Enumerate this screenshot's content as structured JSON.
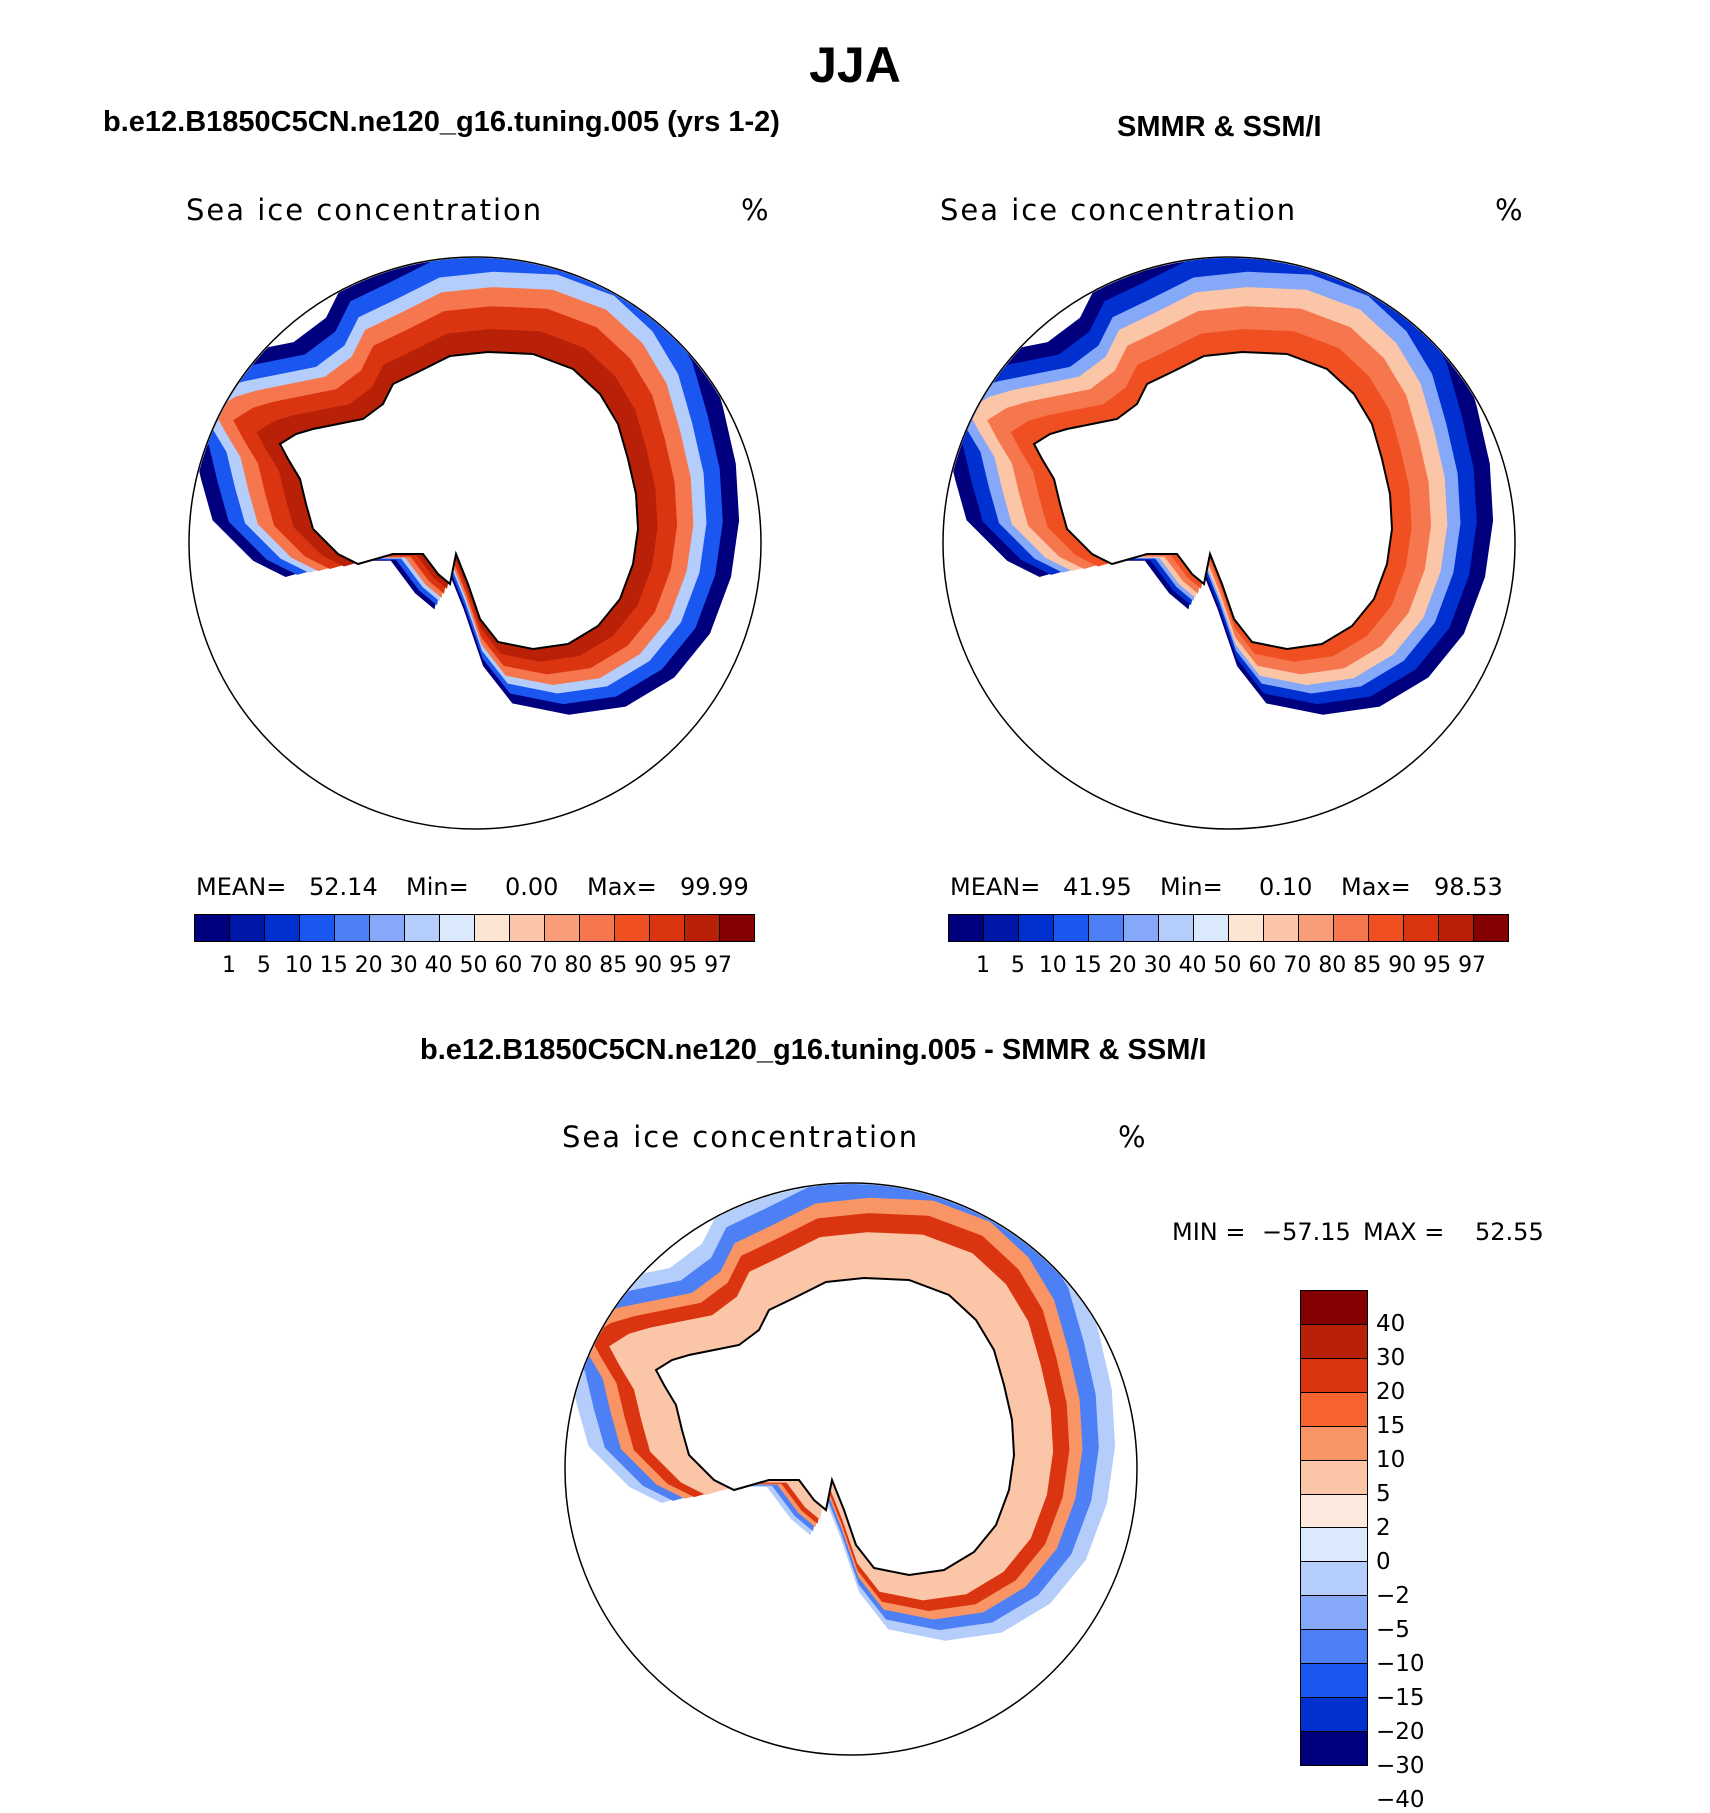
{
  "figure": {
    "title": "JJA"
  },
  "panels": {
    "model": {
      "title": "b.e12.B1850C5CN.ne120_g16.tuning.005 (yrs 1-2)",
      "variable": "Sea ice concentration",
      "units": "%",
      "stats": {
        "mean_label": "MEAN=",
        "mean": "52.14",
        "min_label": "Min=",
        "min": "0.00",
        "max_label": "Max=",
        "max": "99.99"
      }
    },
    "obs": {
      "title": "SMMR & SSM/I",
      "variable": "Sea ice concentration",
      "units": "%",
      "stats": {
        "mean_label": "MEAN=",
        "mean": "41.95",
        "min_label": "Min=",
        "min": "0.10",
        "max_label": "Max=",
        "max": "98.53"
      }
    },
    "diff": {
      "title": "b.e12.B1850C5CN.ne120_g16.tuning.005 - SMMR & SSM/I",
      "variable": "Sea ice concentration",
      "units": "%",
      "stats": {
        "min_label": "MIN =",
        "min": "−57.15",
        "max_label": "MAX =",
        "max": "52.55"
      }
    }
  },
  "colorbars": {
    "concentration": {
      "colors": [
        "#00007f",
        "#0018a8",
        "#0030d0",
        "#1a57f0",
        "#4d7ff5",
        "#85a8f8",
        "#b5cdfb",
        "#dbe9fd",
        "#fde5d4",
        "#fbc5a8",
        "#f99d78",
        "#f6764e",
        "#f04f22",
        "#da3510",
        "#b82008",
        "#850000"
      ],
      "labels": [
        "1",
        "5",
        "10",
        "15",
        "20",
        "30",
        "40",
        "50",
        "60",
        "70",
        "80",
        "85",
        "90",
        "95",
        "97"
      ]
    },
    "difference": {
      "colors": [
        "#850000",
        "#b82008",
        "#da3510",
        "#f6632e",
        "#f99565",
        "#fbc5a8",
        "#fde9dd",
        "#dbe9fd",
        "#b5cdfb",
        "#85a8f8",
        "#4d7ff5",
        "#1a57f0",
        "#0030d0",
        "#00007f"
      ],
      "labels": [
        "40",
        "30",
        "20",
        "15",
        "10",
        "5",
        "2",
        "0",
        "−2",
        "−5",
        "−10",
        "−15",
        "−20",
        "−30",
        "−40"
      ]
    }
  },
  "maps": {
    "projection": "south-polar-stereographic",
    "model_ring_colors": [
      "#00007f",
      "#1a57f0",
      "#b5cdfb",
      "#f6764e",
      "#da3510",
      "#b82008"
    ],
    "obs_ring_colors": [
      "#00007f",
      "#0030d0",
      "#85a8f8",
      "#fbc5a8",
      "#f6764e",
      "#f04f22"
    ],
    "diff_ring_colors": [
      "#b5cdfb",
      "#4d7ff5",
      "#f99565",
      "#da3510",
      "#fbc5a8"
    ]
  }
}
